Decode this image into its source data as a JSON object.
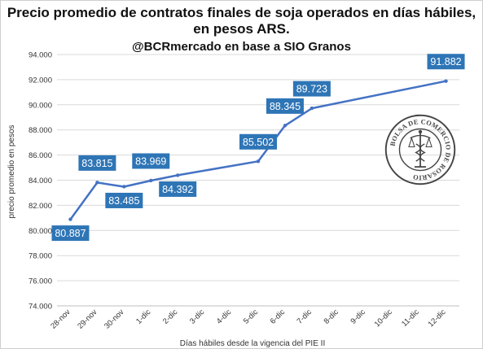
{
  "chart_data": {
    "type": "line",
    "title_line1": "Precio promedio de contratos finales de soja operados en días hábiles,",
    "title_line2": "en pesos ARS.",
    "subtitle": "@BCRmercado en base a SIO Granos",
    "xlabel": "Días hábiles desde la vigencia del PIE II",
    "ylabel": "precio promedio en pesos",
    "ylim": [
      74000,
      94000
    ],
    "y_ticks": [
      "74.000",
      "76.000",
      "78.000",
      "80.000",
      "82.000",
      "84.000",
      "86.000",
      "88.000",
      "90.000",
      "92.000",
      "94.000"
    ],
    "categories": [
      "28-nov",
      "29-nov",
      "30-nov",
      "1-dic",
      "2-dic",
      "3-dic",
      "4-dic",
      "5-dic",
      "6-dic",
      "7-dic",
      "8-dic",
      "9-dic",
      "10-dic",
      "11-dic",
      "12-dic"
    ],
    "series": [
      {
        "values": [
          80887,
          83815,
          83485,
          83969,
          84392,
          null,
          null,
          85502,
          88345,
          89723,
          null,
          null,
          null,
          null,
          91882
        ]
      }
    ],
    "data_labels": [
      {
        "index": 0,
        "text": "80.887",
        "pos": "below"
      },
      {
        "index": 1,
        "text": "83.815",
        "pos": "above"
      },
      {
        "index": 2,
        "text": "83.485",
        "pos": "below"
      },
      {
        "index": 3,
        "text": "83.969",
        "pos": "above"
      },
      {
        "index": 4,
        "text": "84.392",
        "pos": "below"
      },
      {
        "index": 7,
        "text": "85.502",
        "pos": "above"
      },
      {
        "index": 8,
        "text": "88.345",
        "pos": "above"
      },
      {
        "index": 9,
        "text": "89.723",
        "pos": "above"
      },
      {
        "index": 14,
        "text": "91.882",
        "pos": "above"
      }
    ],
    "colors": {
      "line": "#4472c4",
      "label_bg": "#2e75b6",
      "label_text": "#ffffff"
    },
    "grid": true,
    "legend": "none"
  },
  "logo": {
    "text": "BOLSA DE COMERCIO DE ROSARIO"
  }
}
